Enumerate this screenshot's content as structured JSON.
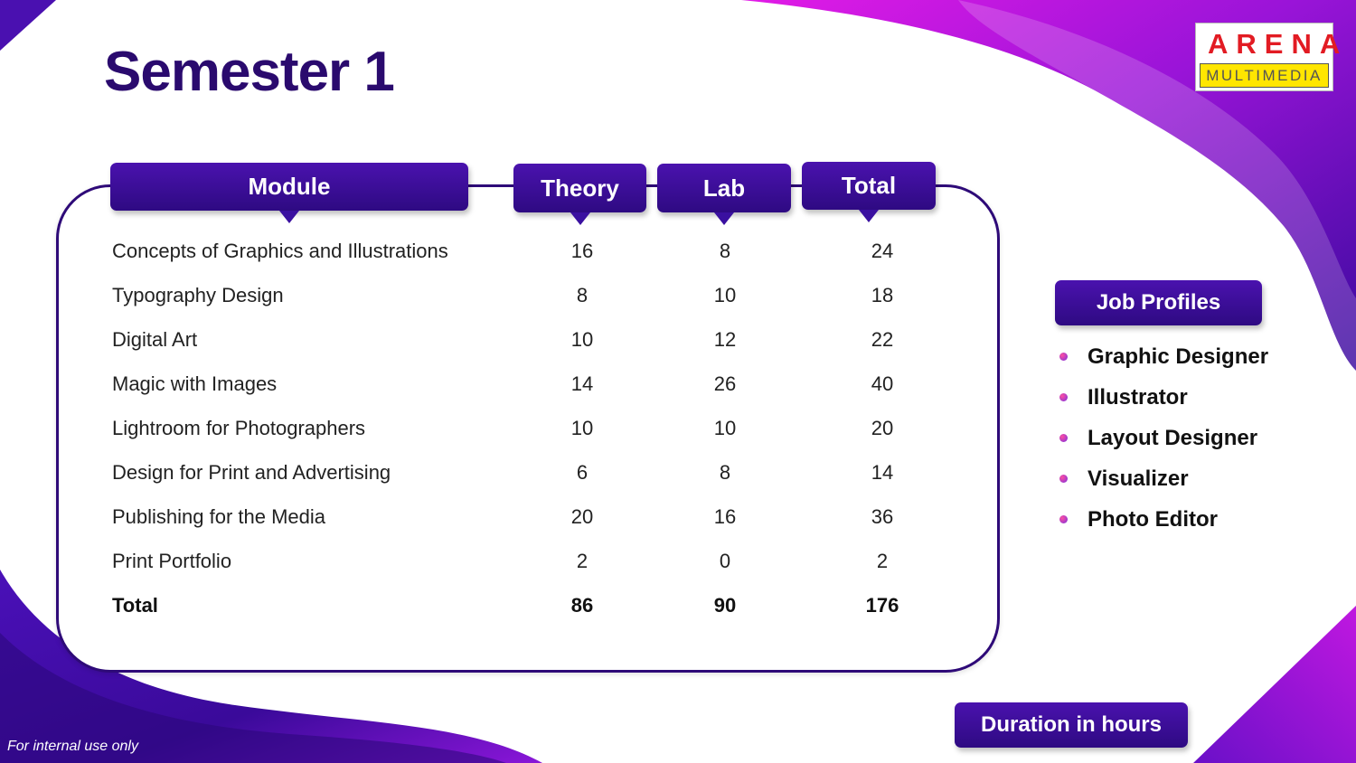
{
  "title": "Semester 1",
  "logo": {
    "top": "ARENA",
    "bottom": "MULTIMEDIA"
  },
  "table": {
    "headers": {
      "module": "Module",
      "theory": "Theory",
      "lab": "Lab",
      "total": "Total"
    },
    "rows": [
      {
        "module": "Concepts of Graphics and Illustrations",
        "theory": "16",
        "lab": "8",
        "total": "24"
      },
      {
        "module": "Typography Design",
        "theory": "8",
        "lab": "10",
        "total": "18"
      },
      {
        "module": "Digital Art",
        "theory": "10",
        "lab": "12",
        "total": "22"
      },
      {
        "module": "Magic with Images",
        "theory": "14",
        "lab": "26",
        "total": "40"
      },
      {
        "module": "Lightroom for Photographers",
        "theory": "10",
        "lab": "10",
        "total": "20"
      },
      {
        "module": "Design for Print and Advertising",
        "theory": "6",
        "lab": "8",
        "total": "14"
      },
      {
        "module": "Publishing for the Media",
        "theory": "20",
        "lab": "16",
        "total": "36"
      },
      {
        "module": "Print Portfolio",
        "theory": "2",
        "lab": "0",
        "total": "2"
      }
    ],
    "totals": {
      "label": "Total",
      "theory": "86",
      "lab": "90",
      "total": "176"
    }
  },
  "job_profiles": {
    "label": "Job Profiles",
    "items": [
      "Graphic Designer",
      "Illustrator",
      "Layout Designer",
      "Visualizer",
      "Photo Editor"
    ]
  },
  "duration_label": "Duration in hours",
  "footer": "For internal use only",
  "colors": {
    "primary": "#2e0a82",
    "title": "#2a0a6e",
    "accent": "#d81ae0",
    "logo_red": "#e21b23",
    "logo_yellow": "#ffe600"
  }
}
